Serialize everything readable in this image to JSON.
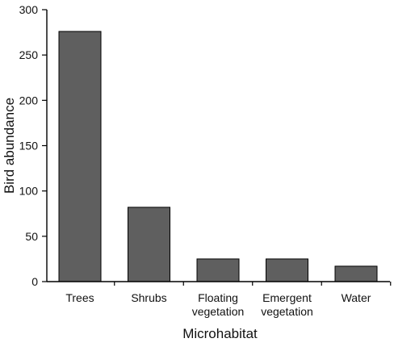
{
  "chart_data": {
    "type": "bar",
    "title": "",
    "xlabel": "Microhabitat",
    "ylabel": "Bird abundance",
    "categories": [
      [
        "Trees"
      ],
      [
        "Shrubs"
      ],
      [
        "Floating",
        "vegetation"
      ],
      [
        "Emergent",
        "vegetation"
      ],
      [
        "Water"
      ]
    ],
    "values": [
      276,
      82,
      25,
      25,
      17
    ],
    "ylim": [
      0,
      300
    ],
    "yticks": [
      0,
      50,
      100,
      150,
      200,
      250,
      300
    ],
    "grid": false,
    "colors": {
      "bar_fill": "#5f5f5f",
      "bar_stroke": "#000000",
      "axis": "#000000",
      "text": "#111111"
    }
  }
}
